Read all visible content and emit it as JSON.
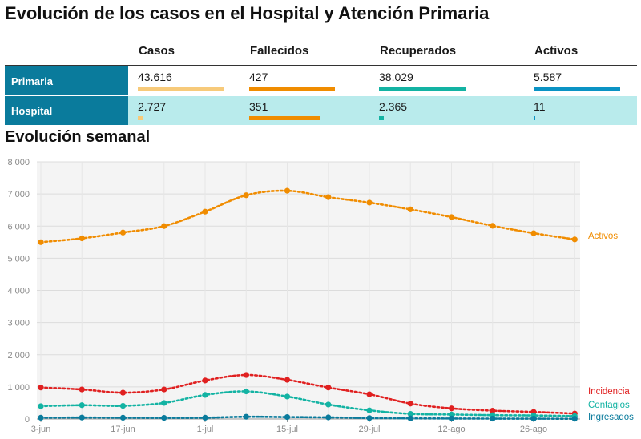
{
  "title": "Evolución de los casos en el Hospital y Atención Primaria",
  "summary_table": {
    "columns": [
      "Casos",
      "Fallecidos",
      "Recuperados",
      "Activos"
    ],
    "rows": [
      {
        "label": "Primaria",
        "values": [
          "43.616",
          "427",
          "38.029",
          "5.587"
        ],
        "bar_fraction": [
          0.99,
          0.99,
          1.0,
          1.0
        ]
      },
      {
        "label": "Hospital",
        "values": [
          "2.727",
          "351",
          "2.365",
          "11"
        ],
        "bar_fraction": [
          0.06,
          0.82,
          0.06,
          0.01
        ]
      }
    ],
    "bar_colors": [
      "#f7ca7a",
      "#f08c00",
      "#13b3a3",
      "#0a93c4"
    ]
  },
  "chart_title": "Evolución semanal",
  "chart_data": {
    "type": "line",
    "x": [
      "3-jun",
      "10-jun",
      "17-jun",
      "24-jun",
      "1-jul",
      "8-jul",
      "15-jul",
      "22-jul",
      "29-jul",
      "5-ago",
      "12-ago",
      "19-ago",
      "26-ago",
      "2-sep"
    ],
    "x_tick_labels": [
      "3-jun",
      "17-jun",
      "1-jul",
      "15-jul",
      "29-jul",
      "12-ago",
      "26-ago"
    ],
    "ylim": [
      0,
      8000
    ],
    "y_ticks": [
      "0",
      "1 000",
      "2 000",
      "3 000",
      "4 000",
      "5 000",
      "6 000",
      "7 000",
      "8 000"
    ],
    "grid": true,
    "series": [
      {
        "name": "Activos",
        "color": "#f08c00",
        "values": [
          5500,
          5620,
          5800,
          6000,
          6450,
          6960,
          7100,
          6900,
          6730,
          6520,
          6280,
          6010,
          5780,
          5587
        ]
      },
      {
        "name": "Incidencia",
        "color": "#e02020",
        "values": [
          980,
          920,
          820,
          920,
          1200,
          1370,
          1220,
          980,
          770,
          480,
          330,
          260,
          220,
          170
        ]
      },
      {
        "name": "Contagios",
        "color": "#13b3a3",
        "values": [
          400,
          430,
          410,
          500,
          750,
          860,
          700,
          450,
          270,
          160,
          140,
          120,
          110,
          90
        ]
      },
      {
        "name": "Ingresados",
        "color": "#0a7b9c",
        "values": [
          40,
          45,
          40,
          35,
          40,
          70,
          60,
          50,
          30,
          20,
          15,
          12,
          10,
          8
        ]
      }
    ]
  }
}
